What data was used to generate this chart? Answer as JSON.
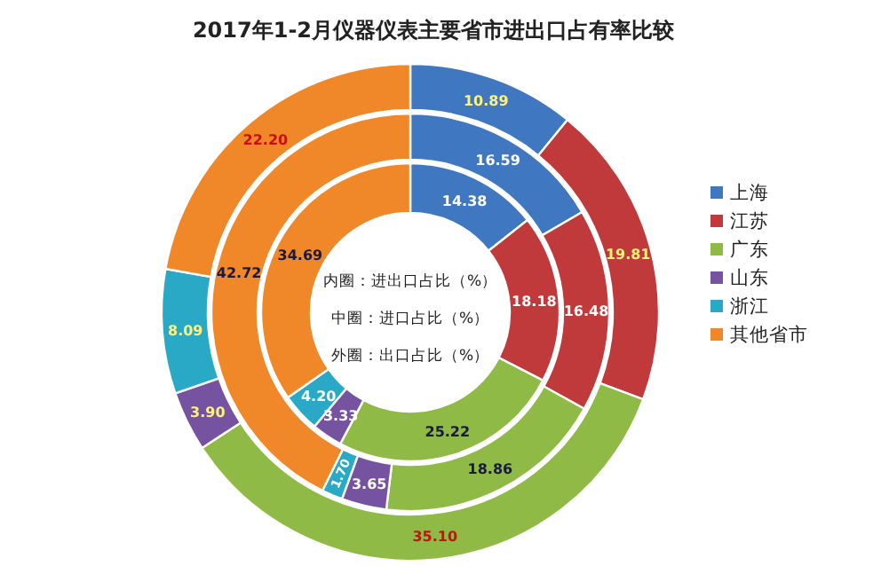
{
  "chart_data": {
    "type": "donut",
    "title": "2017年1-2月仪器仪表主要省市进出口占有率比较",
    "categories": [
      "上海",
      "江苏",
      "广东",
      "山东",
      "浙江",
      "其他省市"
    ],
    "colors": [
      "#3f78c0",
      "#c0393b",
      "#8fba45",
      "#7553a0",
      "#2aa9c7",
      "#f0882a"
    ],
    "series": [
      {
        "values": [
          14.38,
          18.18,
          25.22,
          3.33,
          4.2,
          34.69
        ],
        "value_labels": [
          "14.38",
          "18.18",
          "25.22",
          "3.33",
          "4.20",
          "34.69"
        ]
      },
      {
        "values": [
          16.59,
          16.48,
          18.86,
          3.65,
          1.7,
          42.72
        ],
        "value_labels": [
          "16.59",
          "16.48",
          "18.86",
          "3.65",
          "1.70",
          "42.72"
        ]
      },
      {
        "values": [
          10.89,
          19.81,
          35.1,
          3.9,
          8.09,
          22.2
        ],
        "value_labels": [
          "10.89",
          "19.81",
          "35.10",
          "3.90",
          "8.09",
          "22.20"
        ]
      }
    ],
    "annotations": [
      "内圈：进出口占比（%）",
      "中圈：进口占比（%）",
      "外圈：出口占比（%）"
    ],
    "legend": "right"
  }
}
